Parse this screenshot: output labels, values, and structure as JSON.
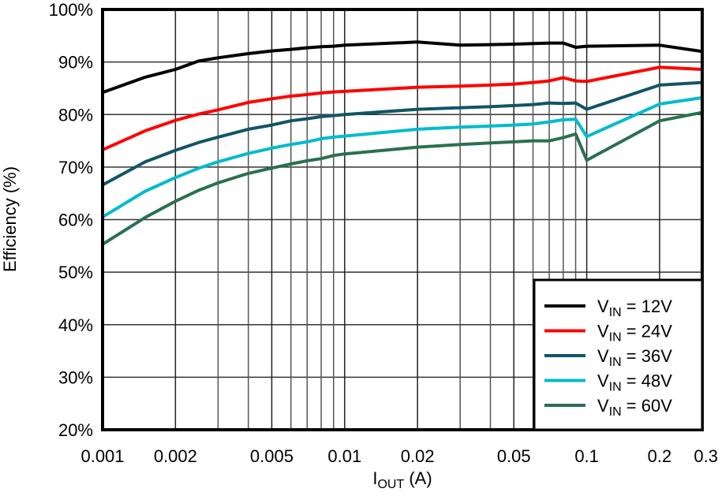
{
  "chart_data": {
    "type": "line",
    "title": "",
    "xlabel": {
      "main": "I",
      "sub": "OUT",
      "rest": " (A)"
    },
    "ylabel": "Efficiency (%)",
    "x_scale": "log",
    "xlim": [
      0.001,
      0.3
    ],
    "ylim": [
      20,
      100
    ],
    "grid": true,
    "legend_position": "bottom-right",
    "x_ticks": [
      "0.001",
      "0.002",
      "0.005",
      "0.01",
      "0.02",
      "0.05",
      "0.1",
      "0.2",
      "0.3"
    ],
    "y_ticks": [
      "20%",
      "30%",
      "40%",
      "50%",
      "60%",
      "70%",
      "80%",
      "90%",
      "100%"
    ],
    "x": [
      0.001,
      0.0015,
      0.002,
      0.0025,
      0.003,
      0.004,
      0.005,
      0.006,
      0.007,
      0.008,
      0.009,
      0.01,
      0.02,
      0.03,
      0.04,
      0.05,
      0.06,
      0.07,
      0.08,
      0.09,
      0.1,
      0.2,
      0.3
    ],
    "series": [
      {
        "name": {
          "main": "V",
          "sub": "IN",
          "rest": " = 12V"
        },
        "color": "#000000",
        "values": [
          84.2,
          87.1,
          88.6,
          90.2,
          90.8,
          91.6,
          92.1,
          92.4,
          92.7,
          92.9,
          93.0,
          93.2,
          93.8,
          93.2,
          93.3,
          93.4,
          93.5,
          93.6,
          93.6,
          92.8,
          93.0,
          93.2,
          92.0
        ]
      },
      {
        "name": {
          "main": "V",
          "sub": "IN",
          "rest": " = 24V"
        },
        "color": "#ff0000",
        "values": [
          73.3,
          76.9,
          78.9,
          80.1,
          80.9,
          82.3,
          83.0,
          83.5,
          83.8,
          84.1,
          84.3,
          84.4,
          85.2,
          85.4,
          85.6,
          85.8,
          86.1,
          86.4,
          87.0,
          86.4,
          86.3,
          89.0,
          88.6
        ]
      },
      {
        "name": {
          "main": "V",
          "sub": "IN",
          "rest": " = 36V"
        },
        "color": "#115566",
        "values": [
          66.6,
          71.0,
          73.2,
          74.7,
          75.7,
          77.2,
          78.0,
          78.8,
          79.2,
          79.6,
          79.8,
          80.0,
          81.0,
          81.3,
          81.5,
          81.7,
          81.9,
          82.2,
          82.1,
          82.2,
          81.0,
          85.6,
          86.1
        ]
      },
      {
        "name": {
          "main": "V",
          "sub": "IN",
          "rest": " = 48V"
        },
        "color": "#00bbcc",
        "values": [
          60.5,
          65.4,
          68.0,
          69.8,
          71.0,
          72.6,
          73.6,
          74.3,
          74.8,
          75.4,
          75.7,
          75.9,
          77.2,
          77.6,
          77.8,
          78.0,
          78.2,
          78.6,
          79.0,
          79.1,
          75.8,
          82.0,
          83.2
        ]
      },
      {
        "name": {
          "main": "V",
          "sub": "IN",
          "rest": " = 60V"
        },
        "color": "#2a7050",
        "values": [
          55.3,
          60.4,
          63.5,
          65.6,
          67.0,
          68.8,
          69.8,
          70.6,
          71.2,
          71.6,
          72.2,
          72.5,
          73.8,
          74.3,
          74.6,
          74.8,
          75.0,
          75.0,
          75.6,
          76.3,
          71.3,
          78.8,
          80.4
        ]
      }
    ]
  }
}
